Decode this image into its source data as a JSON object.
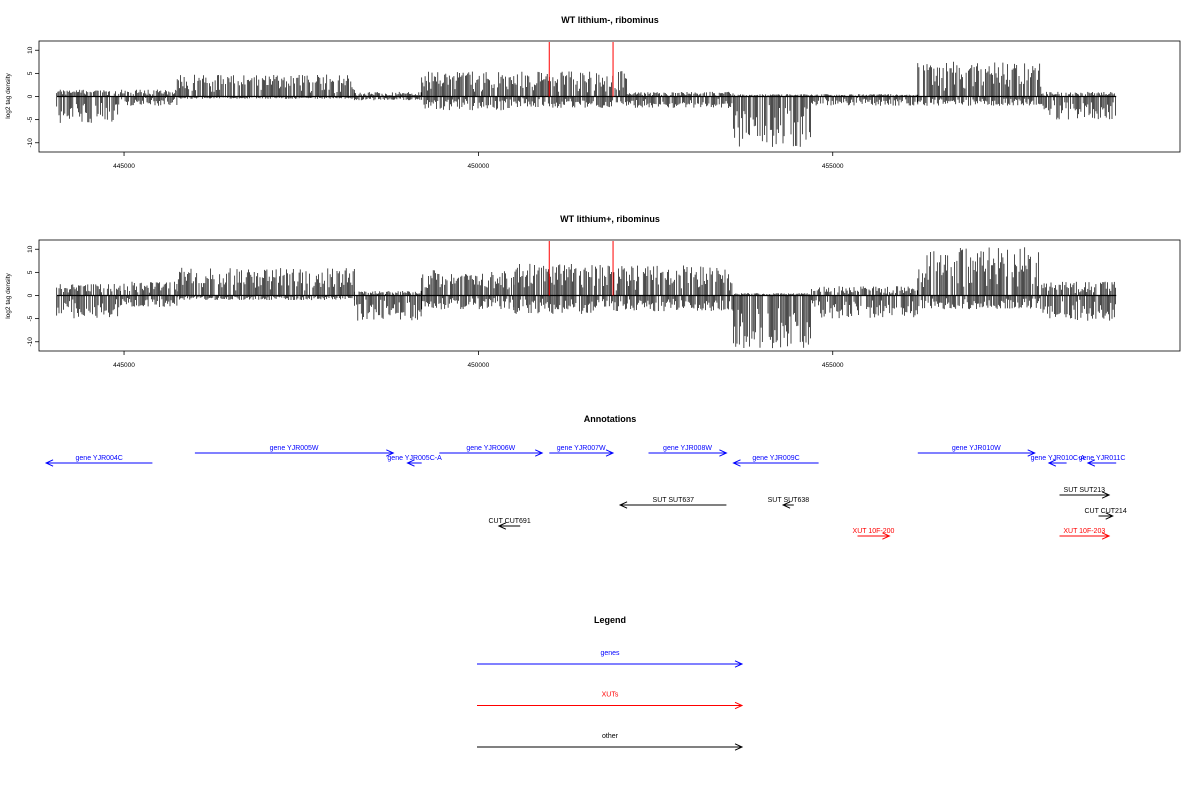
{
  "chart_data": [
    {
      "type": "bar",
      "title": "WT lithium-, ribominus",
      "ylabel": "log2 tag density",
      "xlabel": "",
      "xlim": [
        443800,
        459900
      ],
      "ylim": [
        -12,
        12
      ],
      "xticks": [
        445000,
        450000,
        455000
      ],
      "yticks": [
        10,
        5,
        0,
        -5,
        -10
      ],
      "grid": false,
      "markers": [
        451000,
        451900
      ],
      "marker_color": "#ff0000",
      "bar_color": "#000000",
      "segments": [
        {
          "start": 444050,
          "end": 444950,
          "max": 1.5,
          "min": -6.0
        },
        {
          "start": 444950,
          "end": 445750,
          "max": 1.5,
          "min": -2.0
        },
        {
          "start": 445750,
          "end": 448250,
          "max": 4.8,
          "min": -0.5
        },
        {
          "start": 448250,
          "end": 449200,
          "max": 1.0,
          "min": -0.8
        },
        {
          "start": 449200,
          "end": 450500,
          "max": 5.5,
          "min": -3.0
        },
        {
          "start": 450500,
          "end": 452100,
          "max": 5.5,
          "min": -2.5
        },
        {
          "start": 452100,
          "end": 453600,
          "max": 1.0,
          "min": -2.5
        },
        {
          "start": 453600,
          "end": 454700,
          "max": 0.5,
          "min": -11.0
        },
        {
          "start": 454700,
          "end": 456200,
          "max": 0.5,
          "min": -2.0
        },
        {
          "start": 456200,
          "end": 457950,
          "max": 7.5,
          "min": -2.0
        },
        {
          "start": 457950,
          "end": 459000,
          "max": 1.0,
          "min": -5.0
        }
      ]
    },
    {
      "type": "bar",
      "title": "WT lithium+, ribominus",
      "ylabel": "log2 tag density",
      "xlabel": "",
      "xlim": [
        443800,
        459900
      ],
      "ylim": [
        -12,
        12
      ],
      "xticks": [
        445000,
        450000,
        455000
      ],
      "yticks": [
        10,
        5,
        0,
        -5,
        -10
      ],
      "grid": false,
      "markers": [
        451000,
        451900
      ],
      "marker_color": "#ff0000",
      "bar_color": "#000000",
      "segments": [
        {
          "start": 444050,
          "end": 444950,
          "max": 2.5,
          "min": -5.0
        },
        {
          "start": 444950,
          "end": 445750,
          "max": 3.0,
          "min": -2.5
        },
        {
          "start": 445750,
          "end": 448250,
          "max": 6.0,
          "min": -1.0
        },
        {
          "start": 448250,
          "end": 449200,
          "max": 1.0,
          "min": -5.5
        },
        {
          "start": 449200,
          "end": 450500,
          "max": 5.5,
          "min": -3.0
        },
        {
          "start": 450500,
          "end": 452100,
          "max": 7.0,
          "min": -4.0
        },
        {
          "start": 452100,
          "end": 453600,
          "max": 6.5,
          "min": -3.5
        },
        {
          "start": 453600,
          "end": 454700,
          "max": 0.5,
          "min": -11.5
        },
        {
          "start": 454700,
          "end": 456200,
          "max": 2.0,
          "min": -5.0
        },
        {
          "start": 456200,
          "end": 457950,
          "max": 10.5,
          "min": -3.0
        },
        {
          "start": 457950,
          "end": 459000,
          "max": 3.0,
          "min": -5.5
        }
      ]
    },
    {
      "type": "other",
      "title": "Annotations",
      "features": [
        {
          "label": "gene YJR004C",
          "start": 443900,
          "end": 445400,
          "strand": "-",
          "kind": "gene",
          "row": 1
        },
        {
          "label": "gene YJR005W",
          "start": 446000,
          "end": 448800,
          "strand": "+",
          "kind": "gene",
          "row": 0
        },
        {
          "label": "gene YJR005C-A",
          "start": 449000,
          "end": 449200,
          "strand": "-",
          "kind": "gene",
          "row": 1
        },
        {
          "label": "gene YJR006W",
          "start": 449450,
          "end": 450900,
          "strand": "+",
          "kind": "gene",
          "row": 0
        },
        {
          "label": "gene YJR007W",
          "start": 451000,
          "end": 451900,
          "strand": "+",
          "kind": "gene",
          "row": 0
        },
        {
          "label": "gene YJR008W",
          "start": 452400,
          "end": 453500,
          "strand": "+",
          "kind": "gene",
          "row": 0
        },
        {
          "label": "gene YJR009C",
          "start": 453600,
          "end": 454800,
          "strand": "-",
          "kind": "gene",
          "row": 1
        },
        {
          "label": "gene YJR010W",
          "start": 456200,
          "end": 457850,
          "strand": "+",
          "kind": "gene",
          "row": 0
        },
        {
          "label": "gene YJR010C-A",
          "start": 458050,
          "end": 458300,
          "strand": "-",
          "kind": "gene",
          "row": 1
        },
        {
          "label": "gene YJR011C",
          "start": 458600,
          "end": 459000,
          "strand": "-",
          "kind": "gene",
          "row": 1
        },
        {
          "label": "SUT SUT637",
          "start": 452000,
          "end": 453500,
          "strand": "-",
          "kind": "other",
          "row": 2
        },
        {
          "label": "SUT SUT638",
          "start": 454300,
          "end": 454450,
          "strand": "-",
          "kind": "other",
          "row": 2
        },
        {
          "label": "SUT SUT213",
          "start": 458200,
          "end": 458900,
          "strand": "+",
          "kind": "other",
          "row": 3
        },
        {
          "label": "CUT CUT214",
          "start": 458750,
          "end": 458950,
          "strand": "+",
          "kind": "other",
          "row": 4
        },
        {
          "label": "CUT CUT691",
          "start": 450290,
          "end": 450590,
          "strand": "-",
          "kind": "other",
          "row": 5
        },
        {
          "label": "XUT 10F-200",
          "start": 455350,
          "end": 455800,
          "strand": "+",
          "kind": "xut",
          "row": 6
        },
        {
          "label": "XUT 10F-203",
          "start": 458200,
          "end": 458900,
          "strand": "+",
          "kind": "xut",
          "row": 6
        }
      ]
    },
    {
      "type": "other",
      "title": "Legend",
      "entries": [
        {
          "label": "genes",
          "color": "#0000ff"
        },
        {
          "label": "XUTs",
          "color": "#ff0000"
        },
        {
          "label": "other",
          "color": "#000000"
        }
      ]
    }
  ]
}
